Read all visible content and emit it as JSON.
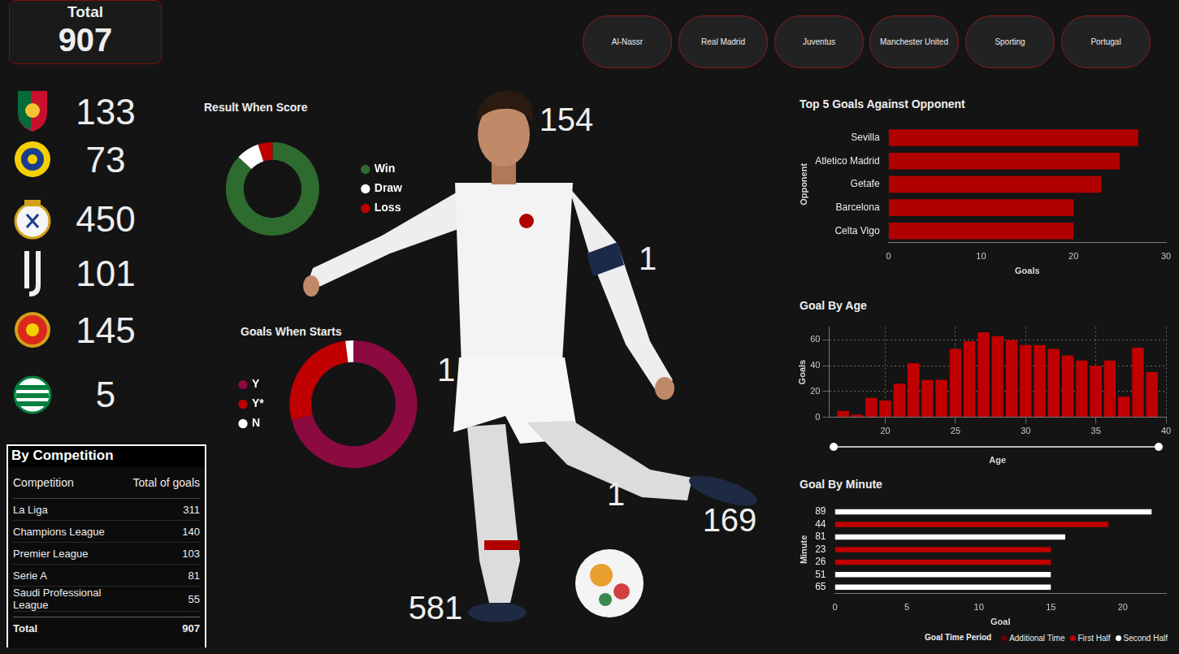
{
  "total_card": {
    "label": "Total",
    "value": 907
  },
  "slicers": [
    "Al-Nassr",
    "Real Madrid",
    "Juventus",
    "Manchester United",
    "Sporting",
    "Portugal"
  ],
  "club_goals": [
    133,
    73,
    450,
    101,
    145,
    5
  ],
  "body_part_goals": [
    154,
    1,
    1,
    1,
    169,
    581
  ],
  "table": {
    "title": "By Competition",
    "columns": [
      "Competition",
      "Total of goals"
    ],
    "rows": [
      [
        "La Liga",
        311
      ],
      [
        "Champions League",
        140
      ],
      [
        "Premier League",
        103
      ],
      [
        "Serie A",
        81
      ],
      [
        "Saudi Professional League",
        55
      ]
    ],
    "total": [
      "Total",
      907
    ]
  },
  "chart_data": [
    {
      "type": "doughnut",
      "title": "Result When Score",
      "categories": [
        "Win",
        "Draw",
        "Loss"
      ],
      "values": [
        87,
        8,
        5
      ],
      "colors": [
        "#2e6b2e",
        "#ffffff",
        "#c00000"
      ],
      "legend": "right"
    },
    {
      "type": "doughnut",
      "title": "Goals When Starts",
      "categories": [
        "Y",
        "Y*",
        "N"
      ],
      "values": [
        71,
        27,
        2
      ],
      "colors": [
        "#8b0a3f",
        "#c00000",
        "#ffffff"
      ],
      "legend": "left"
    },
    {
      "type": "bar",
      "orientation": "horizontal",
      "title": "Top 5 Goals Against Opponent",
      "x_label": "Goals",
      "y_label": "Opponent",
      "categories": [
        "Sevilla",
        "Atletico Madrid",
        "Getafe",
        "Barcelona",
        "Celta Vigo"
      ],
      "values": [
        27,
        25,
        23,
        20,
        20
      ],
      "color": "#b00000",
      "xlim": [
        0,
        30
      ],
      "xticks": [
        0,
        10,
        20,
        30
      ],
      "grid": false
    },
    {
      "type": "bar",
      "title": "Goal By Age",
      "x_label": "Age",
      "y_label": "Goals",
      "x": [
        17,
        18,
        19,
        20,
        21,
        22,
        23,
        24,
        25,
        26,
        27,
        28,
        29,
        30,
        31,
        32,
        33,
        34,
        35,
        36,
        37,
        38,
        39
      ],
      "values": [
        5,
        2,
        15,
        13,
        26,
        42,
        29,
        29,
        53,
        59,
        66,
        63,
        60,
        56,
        56,
        53,
        48,
        44,
        40,
        44,
        16,
        54,
        35
      ],
      "color": "#c00000",
      "xlim": [
        16,
        40
      ],
      "xticks": [
        20,
        25,
        30,
        35,
        40
      ],
      "ylim": [
        0,
        70
      ],
      "yticks": [
        0,
        20,
        40,
        60
      ],
      "grid": true
    },
    {
      "type": "bar",
      "orientation": "horizontal",
      "title": "Goal By Minute",
      "x_label": "Goal",
      "y_label": "Minute",
      "categories": [
        "89",
        "44",
        "81",
        "23",
        "26",
        "51",
        "65"
      ],
      "series": [
        {
          "name": "Additional Time",
          "color": "#6b0000",
          "values": [
            null,
            null,
            null,
            null,
            null,
            null,
            null
          ]
        },
        {
          "name": "First Half",
          "color": "#c00000",
          "values": [
            null,
            19,
            null,
            15,
            15,
            null,
            null
          ]
        },
        {
          "name": "Second Half",
          "color": "#ffffff",
          "values": [
            22,
            null,
            16,
            null,
            null,
            15,
            15
          ]
        }
      ],
      "stacked": true,
      "legend": "bottom",
      "legend_title": "Goal Time Period",
      "xlim": [
        0,
        23
      ],
      "xticks": [
        0,
        5,
        10,
        15,
        20
      ],
      "grid": false
    }
  ]
}
